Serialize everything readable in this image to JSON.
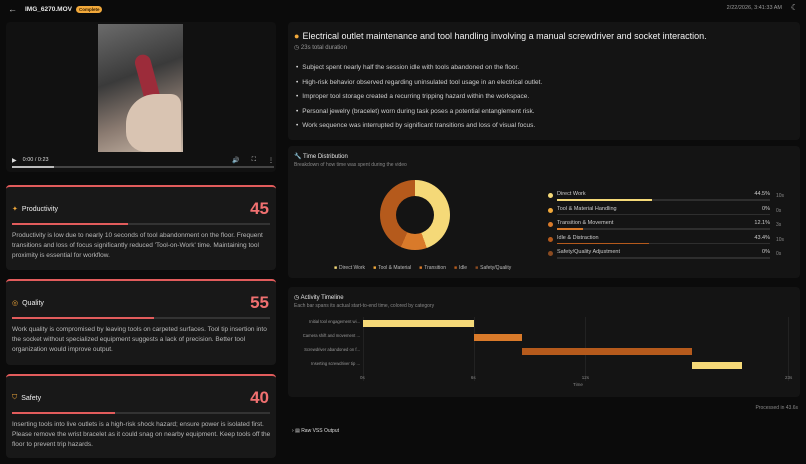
{
  "header": {
    "back_icon": "arrow-left-icon",
    "filename": "IMG_6270.MOV",
    "status": "Complete",
    "timestamp": "2/22/2026, 3:41:33 AM",
    "theme_icon": "moon-icon"
  },
  "video": {
    "time": "0:00 / 0:23",
    "progress": 0.0
  },
  "scores": [
    {
      "name": "Productivity",
      "value": "45",
      "fill": 0.45,
      "desc": "Productivity is low due to nearly 10 seconds of tool abandonment on the floor. Frequent transitions and loss of focus significantly reduced 'Tool-on-Work' time. Maintaining tool proximity is essential for workflow."
    },
    {
      "name": "Quality",
      "value": "55",
      "fill": 0.55,
      "desc": "Work quality is compromised by leaving tools on carpeted surfaces. Tool tip insertion into the socket without specialized equipment suggests a lack of precision. Better tool organization would improve output."
    },
    {
      "name": "Safety",
      "value": "40",
      "fill": 0.4,
      "desc": "Inserting tools into live outlets is a high-risk shock hazard; ensure power is isolated first. Please remove the wrist bracelet as it could snag on nearby equipment. Keep tools off the floor to prevent trip hazards."
    }
  ],
  "summary": {
    "title": "Electrical outlet maintenance and tool handling involving a manual screwdriver and socket interaction.",
    "duration": "23s total duration",
    "bullets": [
      "Subject spent nearly half the session idle with tools abandoned on the floor.",
      "High-risk behavior observed regarding uninsulated tool usage in an electrical outlet.",
      "Improper tool storage created a recurring tripping hazard within the workspace.",
      "Personal jewelry (bracelet) worn during task poses a potential entanglement risk.",
      "Work sequence was interrupted by significant transitions and loss of visual focus."
    ]
  },
  "time_distribution": {
    "title": "Time Distribution",
    "subtitle": "Breakdown of how time was spent during the video",
    "rows": [
      {
        "label": "Direct Work",
        "pct": "44.5%",
        "time": "10s",
        "value": 44.5,
        "color": "#f5d978"
      },
      {
        "label": "Tool & Material Handling",
        "pct": "0%",
        "time": "0s",
        "value": 0,
        "color": "#f2a93b"
      },
      {
        "label": "Transition & Movement",
        "pct": "12.1%",
        "time": "3s",
        "value": 12.1,
        "color": "#d97a2a"
      },
      {
        "label": "Idle & Distraction",
        "pct": "43.4%",
        "time": "10s",
        "value": 43.4,
        "color": "#b55a1c"
      },
      {
        "label": "Safety/Quality Adjustment",
        "pct": "0%",
        "time": "0s",
        "value": 0,
        "color": "#8a4a20"
      }
    ],
    "legend": [
      "Direct Work",
      "Tool & Material",
      "Transition",
      "Idle",
      "Safety/Quality"
    ]
  },
  "timeline": {
    "title": "Activity Timeline",
    "subtitle": "Each bar spans its actual start-to-end time, colored by category",
    "labels": [
      "Initial tool engagement wi...",
      "Camera shift and movement ...",
      "Screwdriver abandoned on f...",
      "Inserting screwdriver tip ..."
    ],
    "segments": [
      {
        "start": 0,
        "end": 6,
        "color": "#f5d978"
      },
      {
        "start": 6,
        "end": 8.6,
        "color": "#d97a2a"
      },
      {
        "start": 8.6,
        "end": 17.8,
        "color": "#b55a1c"
      },
      {
        "start": 17.8,
        "end": 20.5,
        "color": "#f5d978"
      }
    ],
    "ticks": [
      "0s",
      "6s",
      "12s",
      "23s"
    ],
    "xlabel": "Time"
  },
  "footer": {
    "processed": "Processed in 43.6s",
    "raw_output": "Raw VSS Output"
  }
}
